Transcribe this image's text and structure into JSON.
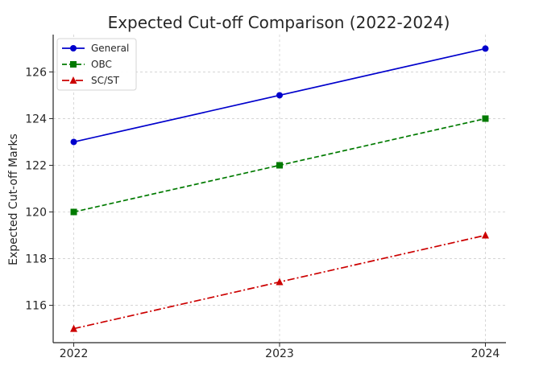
{
  "chart_data": {
    "type": "line",
    "title": "Expected Cut-off Comparison (2022-2024)",
    "xlabel": "",
    "ylabel": "Expected Cut-off Marks",
    "x": [
      2022,
      2023,
      2024
    ],
    "x_tick_labels": [
      "2022",
      "2023",
      "2024"
    ],
    "y_ticks": [
      116,
      118,
      120,
      122,
      124,
      126
    ],
    "y_tick_labels": [
      "116",
      "118",
      "120",
      "122",
      "124",
      "126"
    ],
    "xlim": [
      2021.9,
      2024.1
    ],
    "ylim": [
      114.4,
      127.6
    ],
    "grid": true,
    "legend_position": "top-left",
    "series": [
      {
        "name": "General",
        "values": [
          123,
          125,
          127
        ],
        "color": "#0000cc",
        "marker": "circle",
        "line_style": "solid"
      },
      {
        "name": "OBC",
        "values": [
          120,
          122,
          124
        ],
        "color": "#007a00",
        "marker": "square",
        "line_style": "dashed"
      },
      {
        "name": "SC/ST",
        "values": [
          115,
          117,
          119
        ],
        "color": "#cc0000",
        "marker": "triangle",
        "line_style": "dashdot"
      }
    ]
  }
}
